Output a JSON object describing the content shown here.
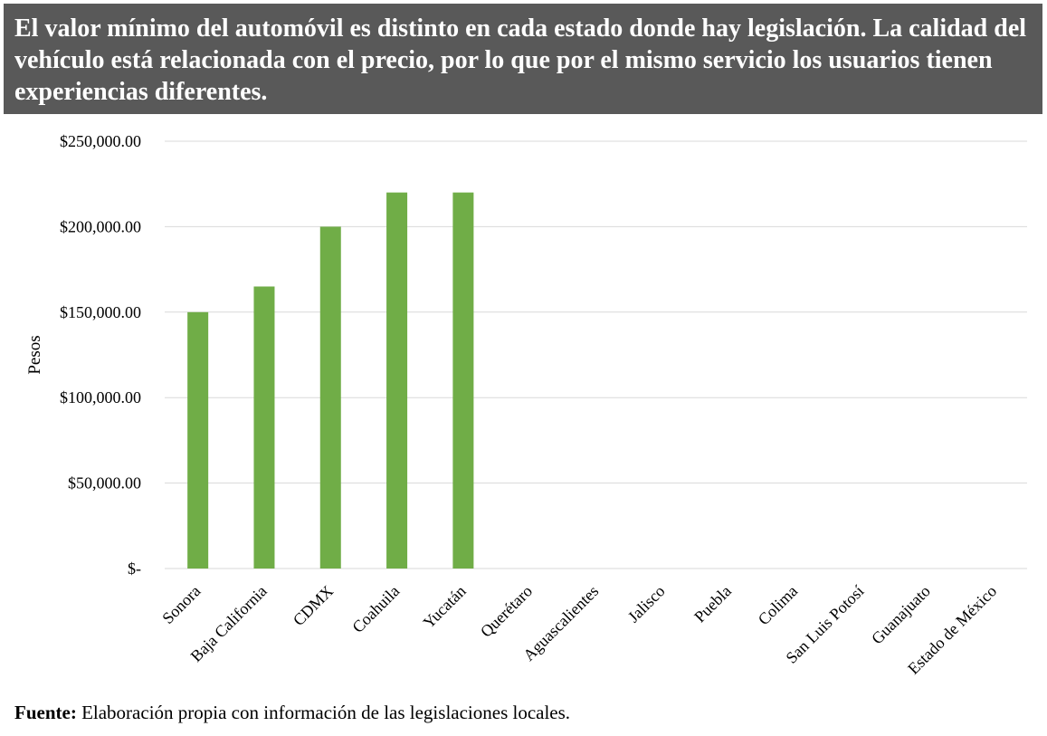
{
  "header": {
    "title": "El valor mínimo del automóvil es distinto en cada estado donde hay legislación. La calidad del vehículo está relacionada con el precio, por lo que por el mismo servicio los usuarios tienen experiencias diferentes."
  },
  "chart_data": {
    "type": "bar",
    "categories": [
      "Sonora",
      "Baja California",
      "CDMX",
      "Coahuila",
      "Yucatán",
      "Querétaro",
      "Aguascalientes",
      "Jalisco",
      "Puebla",
      "Colima",
      "San Luis Potosí",
      "Guanajuato",
      "Estado de México"
    ],
    "values": [
      150000,
      165000,
      200000,
      220000,
      220000,
      0,
      0,
      0,
      0,
      0,
      0,
      0,
      0
    ],
    "xlabel": "",
    "ylabel": "Pesos",
    "ylim": [
      0,
      250000
    ],
    "y_ticks": [
      0,
      50000,
      100000,
      150000,
      200000,
      250000
    ],
    "y_tick_labels": [
      "$-",
      "$50,000.00",
      "$100,000.00",
      "$150,000.00",
      "$200,000.00",
      "$250,000.00"
    ],
    "grid": true,
    "bar_color": "#70ad47",
    "grid_color": "#d9d9d9"
  },
  "footer": {
    "label": "Fuente:",
    "text": " Elaboración propia con información de las legislaciones locales."
  },
  "colors": {
    "banner_background": "#595959",
    "banner_text": "#ffffff"
  }
}
